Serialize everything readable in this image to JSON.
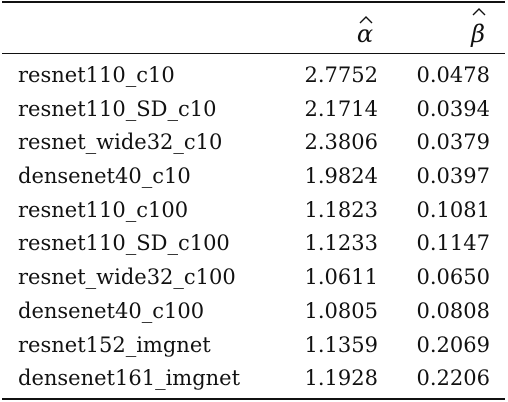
{
  "table": {
    "headers": {
      "model": "",
      "alpha_symbol": "α",
      "beta_symbol": "β"
    },
    "rows": [
      {
        "name": "resnet110_c10",
        "alpha": "2.7752",
        "beta": "0.0478"
      },
      {
        "name": "resnet110_SD_c10",
        "alpha": "2.1714",
        "beta": "0.0394"
      },
      {
        "name": "resnet_wide32_c10",
        "alpha": "2.3806",
        "beta": "0.0379"
      },
      {
        "name": "densenet40_c10",
        "alpha": "1.9824",
        "beta": "0.0397"
      },
      {
        "name": "resnet110_c100",
        "alpha": "1.1823",
        "beta": "0.1081"
      },
      {
        "name": "resnet110_SD_c100",
        "alpha": "1.1233",
        "beta": "0.1147"
      },
      {
        "name": "resnet_wide32_c100",
        "alpha": "1.0611",
        "beta": "0.0650"
      },
      {
        "name": "densenet40_c100",
        "alpha": "1.0805",
        "beta": "0.0808"
      },
      {
        "name": "resnet152_imgnet",
        "alpha": "1.1359",
        "beta": "0.2069"
      },
      {
        "name": "densenet161_imgnet",
        "alpha": "1.1928",
        "beta": "0.2206"
      }
    ]
  }
}
